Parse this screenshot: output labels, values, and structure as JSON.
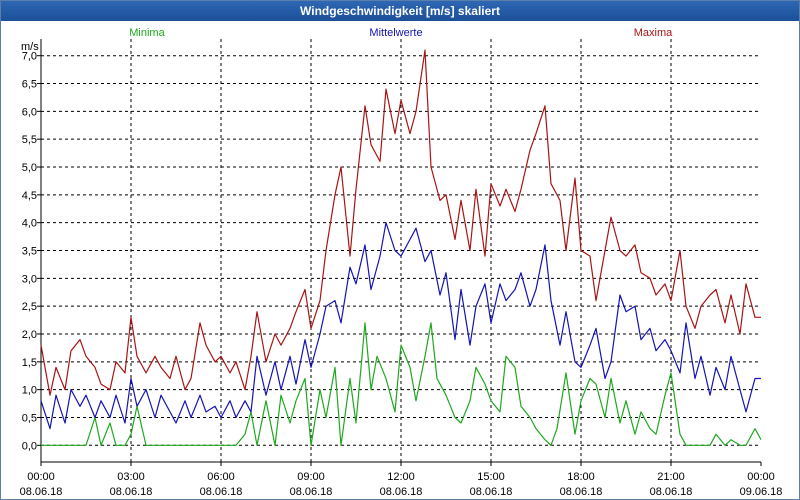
{
  "window": {
    "title": "Windgeschwindigkeit [m/s] skaliert"
  },
  "chart_data": {
    "type": "line",
    "title": "Windgeschwindigkeit [m/s] skaliert",
    "ylabel": "m/s",
    "xlabel": "",
    "ylim": [
      -0.3,
      7.3
    ],
    "xlim": [
      0,
      24
    ],
    "yticks": [
      0.0,
      0.5,
      1.0,
      1.5,
      2.0,
      2.5,
      3.0,
      3.5,
      4.0,
      4.5,
      5.0,
      5.5,
      6.0,
      6.5,
      7.0
    ],
    "ytick_labels": [
      "0,0",
      "0,5",
      "1,0",
      "1,5",
      "2,0",
      "2,5",
      "3,0",
      "3,5",
      "4,0",
      "4,5",
      "5,0",
      "5,5",
      "6,0",
      "6,5",
      "7,0"
    ],
    "xticks": [
      {
        "time": "00:00",
        "date": "08.06.18"
      },
      {
        "time": "03:00",
        "date": "08.06.18"
      },
      {
        "time": "06:00",
        "date": "08.06.18"
      },
      {
        "time": "09:00",
        "date": "08.06.18"
      },
      {
        "time": "12:00",
        "date": "08.06.18"
      },
      {
        "time": "15:00",
        "date": "08.06.18"
      },
      {
        "time": "18:00",
        "date": "08.06.18"
      },
      {
        "time": "21:00",
        "date": "08.06.18"
      },
      {
        "time": "00:00",
        "date": "09.06.18"
      }
    ],
    "grid": true,
    "series": [
      {
        "name": "Minima",
        "color": "#1ea81e",
        "x": [
          0,
          0.5,
          1,
          1.5,
          1.8,
          2,
          2.3,
          2.5,
          2.8,
          3,
          3.2,
          3.5,
          4,
          5,
          6,
          6.5,
          6.8,
          7,
          7.2,
          7.5,
          7.8,
          8,
          8.3,
          8.5,
          8.8,
          9,
          9.3,
          9.5,
          9.8,
          10,
          10.3,
          10.5,
          10.8,
          11,
          11.2,
          11.5,
          11.8,
          12,
          12.3,
          12.5,
          12.8,
          13,
          13.2,
          13.5,
          13.8,
          14,
          14.3,
          14.5,
          14.8,
          15,
          15.3,
          15.5,
          15.8,
          16,
          16.3,
          16.5,
          16.8,
          17,
          17.2,
          17.5,
          17.8,
          18,
          18.3,
          18.5,
          18.8,
          19,
          19.3,
          19.5,
          19.8,
          20,
          20.3,
          20.5,
          20.8,
          21,
          21.3,
          21.5,
          22,
          22.3,
          22.5,
          22.8,
          23,
          23.3,
          23.5,
          23.8,
          24
        ],
        "values": [
          0.0,
          0.0,
          0.0,
          0.0,
          0.5,
          0.0,
          0.4,
          0.0,
          0.0,
          0.2,
          0.7,
          0.0,
          0.0,
          0.0,
          0.0,
          0.0,
          0.2,
          0.6,
          0.0,
          0.8,
          0.0,
          0.9,
          0.4,
          0.8,
          1.2,
          0.0,
          1.0,
          0.5,
          1.4,
          0.0,
          1.2,
          0.4,
          2.2,
          1.0,
          1.6,
          1.2,
          0.6,
          1.8,
          1.4,
          0.8,
          1.6,
          2.2,
          1.2,
          0.9,
          0.5,
          0.4,
          0.8,
          1.4,
          1.1,
          0.8,
          0.6,
          1.6,
          1.4,
          0.7,
          0.5,
          0.3,
          0.1,
          0.0,
          0.3,
          1.3,
          0.2,
          0.8,
          1.2,
          1.1,
          0.5,
          1.2,
          0.4,
          0.8,
          0.2,
          0.6,
          0.3,
          0.2,
          0.9,
          1.3,
          0.2,
          0.0,
          0.0,
          0.0,
          0.2,
          0.0,
          0.1,
          0.0,
          0.0,
          0.3,
          0.1
        ]
      },
      {
        "name": "Mittelwerte",
        "color": "#1414b4",
        "x": [
          0,
          0.3,
          0.5,
          0.8,
          1,
          1.3,
          1.5,
          1.8,
          2,
          2.3,
          2.5,
          2.8,
          3,
          3.2,
          3.5,
          3.8,
          4,
          4.3,
          4.5,
          4.8,
          5,
          5.3,
          5.5,
          5.8,
          6,
          6.3,
          6.5,
          6.8,
          7,
          7.2,
          7.5,
          7.8,
          8,
          8.3,
          8.5,
          8.8,
          9,
          9.3,
          9.5,
          9.8,
          10,
          10.3,
          10.5,
          10.8,
          11,
          11.3,
          11.5,
          11.8,
          12,
          12.3,
          12.5,
          12.8,
          13,
          13.3,
          13.5,
          13.8,
          14,
          14.3,
          14.5,
          14.8,
          15,
          15.3,
          15.5,
          15.8,
          16,
          16.3,
          16.5,
          16.8,
          17,
          17.3,
          17.5,
          17.8,
          18,
          18.3,
          18.5,
          18.8,
          19,
          19.3,
          19.5,
          19.8,
          20,
          20.3,
          20.5,
          20.8,
          21,
          21.3,
          21.5,
          21.8,
          22,
          22.3,
          22.5,
          22.8,
          23,
          23.3,
          23.5,
          23.8,
          24
        ],
        "values": [
          0.8,
          0.3,
          0.9,
          0.4,
          1.0,
          0.7,
          0.9,
          0.5,
          0.8,
          0.5,
          0.9,
          0.4,
          1.2,
          0.7,
          1.0,
          0.5,
          0.9,
          0.6,
          0.4,
          0.8,
          0.5,
          0.9,
          0.6,
          0.7,
          0.5,
          0.8,
          0.5,
          0.8,
          0.6,
          1.6,
          0.9,
          1.5,
          1.0,
          1.6,
          1.1,
          1.9,
          1.4,
          2.0,
          2.5,
          2.6,
          2.2,
          3.2,
          2.9,
          3.6,
          2.8,
          3.4,
          4.0,
          3.5,
          3.4,
          3.7,
          3.9,
          3.3,
          3.5,
          2.7,
          3.1,
          1.9,
          2.8,
          1.8,
          2.5,
          2.9,
          2.2,
          2.9,
          2.6,
          2.8,
          3.1,
          2.5,
          2.8,
          3.6,
          2.6,
          1.8,
          2.4,
          1.5,
          1.4,
          1.8,
          2.1,
          1.2,
          1.5,
          2.7,
          2.4,
          2.5,
          1.9,
          2.1,
          1.7,
          1.9,
          1.7,
          1.3,
          2.2,
          1.2,
          1.6,
          0.9,
          1.4,
          1.0,
          1.6,
          1.0,
          0.6,
          1.2,
          1.2
        ]
      },
      {
        "name": "Maxima",
        "color": "#a81414",
        "x": [
          0,
          0.3,
          0.5,
          0.8,
          1,
          1.3,
          1.5,
          1.8,
          2,
          2.3,
          2.5,
          2.8,
          3,
          3.2,
          3.5,
          3.8,
          4,
          4.3,
          4.5,
          4.8,
          5,
          5.3,
          5.5,
          5.8,
          6,
          6.3,
          6.5,
          6.8,
          7,
          7.2,
          7.5,
          7.8,
          8,
          8.3,
          8.5,
          8.8,
          9,
          9.3,
          9.5,
          9.8,
          10,
          10.3,
          10.5,
          10.8,
          11,
          11.3,
          11.5,
          11.8,
          12,
          12.3,
          12.5,
          12.8,
          13,
          13.3,
          13.5,
          13.8,
          14,
          14.3,
          14.5,
          14.8,
          15,
          15.3,
          15.5,
          15.8,
          16,
          16.3,
          16.5,
          16.8,
          17,
          17.3,
          17.5,
          17.8,
          18,
          18.3,
          18.5,
          18.8,
          19,
          19.3,
          19.5,
          19.8,
          20,
          20.3,
          20.5,
          20.8,
          21,
          21.3,
          21.5,
          21.8,
          22,
          22.3,
          22.5,
          22.8,
          23,
          23.3,
          23.5,
          23.8,
          24
        ],
        "values": [
          1.8,
          0.9,
          1.4,
          1.0,
          1.7,
          1.9,
          1.6,
          1.4,
          1.1,
          1.0,
          1.5,
          1.3,
          2.3,
          1.6,
          1.3,
          1.6,
          1.4,
          1.2,
          1.6,
          1.0,
          1.2,
          2.2,
          1.8,
          1.5,
          1.6,
          1.3,
          1.5,
          1.0,
          1.6,
          2.4,
          1.5,
          2.0,
          1.8,
          2.1,
          2.4,
          2.8,
          2.1,
          2.6,
          3.5,
          4.5,
          5.0,
          3.4,
          4.6,
          6.1,
          5.4,
          5.1,
          6.4,
          5.6,
          6.2,
          5.6,
          6.0,
          7.1,
          5.0,
          4.4,
          4.5,
          3.7,
          4.4,
          3.5,
          4.6,
          3.4,
          4.7,
          4.3,
          4.6,
          4.2,
          4.6,
          5.3,
          5.6,
          6.1,
          4.7,
          4.4,
          3.5,
          4.8,
          3.5,
          3.4,
          2.6,
          3.5,
          4.1,
          3.5,
          3.4,
          3.6,
          3.1,
          3.0,
          2.7,
          2.9,
          2.6,
          3.5,
          2.5,
          2.1,
          2.5,
          2.7,
          2.8,
          2.2,
          2.7,
          2.0,
          2.9,
          2.3,
          2.3
        ]
      }
    ]
  }
}
